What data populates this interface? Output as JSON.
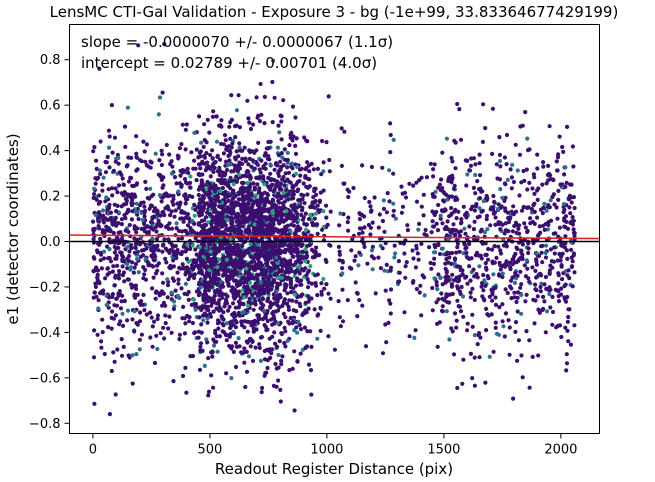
{
  "chart_data": {
    "type": "scatter",
    "title": "LensMC CTI-Gal Validation - Exposure 3 - bg (-1e+99, 33.83364677429199)",
    "xlabel": "Readout Register Distance (pix)",
    "ylabel": "e1 (detector coordinates)",
    "xlim": [
      -100,
      2165
    ],
    "ylim": [
      -0.845,
      0.955
    ],
    "xticks": [
      0,
      500,
      1000,
      1500,
      2000
    ],
    "yticks": [
      -0.8,
      -0.6,
      -0.4,
      -0.2,
      0.0,
      0.2,
      0.4,
      0.6,
      0.8
    ],
    "xtick_labels": [
      "0",
      "500",
      "1000",
      "1500",
      "2000"
    ],
    "ytick_labels": [
      "−0.8",
      "−0.6",
      "−0.4",
      "−0.2",
      "0.0",
      "0.2",
      "0.4",
      "0.6",
      "0.8"
    ],
    "grid": false,
    "annotations": {
      "slope_text": "slope = -0.0000070 +/- 0.0000067 (1.1σ)",
      "intercept_text": "intercept = 0.02789 +/- 0.00701 (4.0σ)"
    },
    "fit_line": {
      "slope": -7e-06,
      "intercept": 0.02789,
      "color": "#d62728"
    },
    "zero_line": {
      "y": 0.0,
      "color": "#000000"
    },
    "point_colors": {
      "dense": "#3b0f6f",
      "mid": "#2c6f8e",
      "high": "#26a17e"
    },
    "point_count_approx": 4500,
    "distribution_note": "points spread over x 0–2060, sparse near 1100–1450; y mostly within ±0.6"
  }
}
